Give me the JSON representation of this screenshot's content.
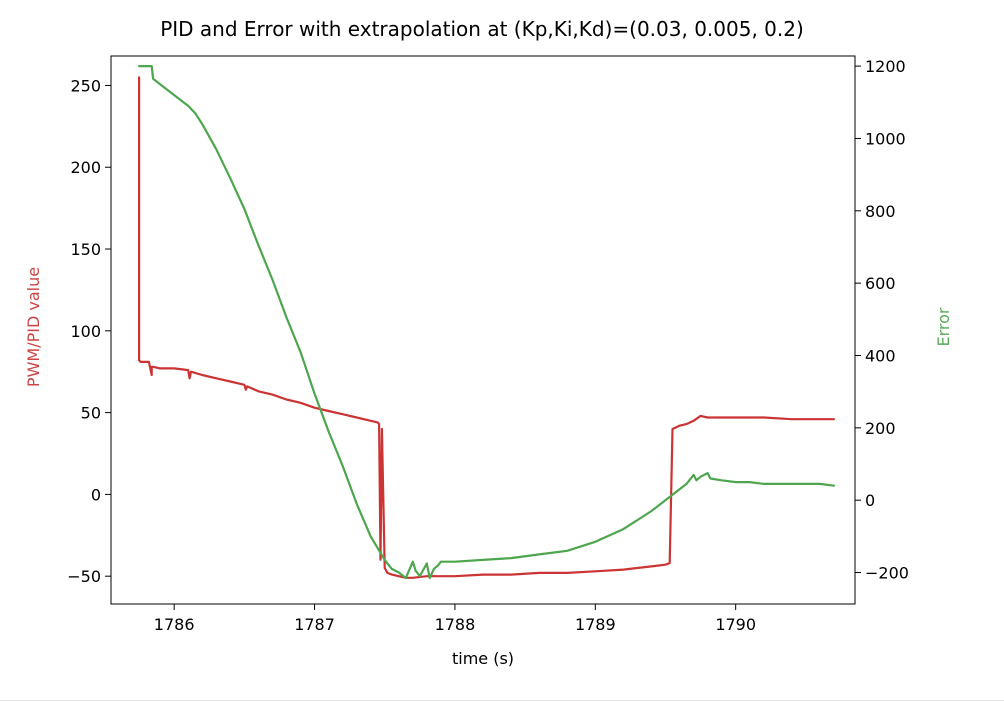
{
  "chart_data": {
    "type": "line",
    "title": "PID and Error with extrapolation at (Kp,Ki,Kd)=(0.03, 0.005, 0.2)",
    "xlabel": "time (s)",
    "ylabel_left": "PWM/PID value",
    "ylabel_right": "Error",
    "xlim": [
      1785.55,
      1790.85
    ],
    "ylim_left": [
      -67,
      268
    ],
    "ylim_right": [
      -287,
      1228
    ],
    "x_ticks": [
      1786,
      1787,
      1788,
      1789,
      1790
    ],
    "y_ticks_left": [
      -50,
      0,
      50,
      100,
      150,
      200,
      250
    ],
    "y_ticks_right": [
      -200,
      0,
      200,
      400,
      600,
      800,
      1000,
      1200
    ],
    "x_tick_labels": [
      "1786",
      "1787",
      "1788",
      "1789",
      "1790"
    ],
    "y_tick_labels_left": [
      "−50",
      "0",
      "50",
      "100",
      "150",
      "200",
      "250"
    ],
    "y_tick_labels_right": [
      "−200",
      "0",
      "200",
      "400",
      "600",
      "800",
      "1000",
      "1200"
    ],
    "grid": false,
    "colors": {
      "pwm": "#cc3333",
      "error": "#4da64d",
      "left_label": "#cc4444",
      "right_label": "#55aa55"
    },
    "series": [
      {
        "axis": "left",
        "color": "#cc3333",
        "x": [
          1785.75,
          1785.75,
          1785.76,
          1785.82,
          1785.84,
          1785.84,
          1785.85,
          1785.9,
          1786.0,
          1786.1,
          1786.11,
          1786.12,
          1786.2,
          1786.3,
          1786.4,
          1786.5,
          1786.51,
          1786.52,
          1786.6,
          1786.7,
          1786.8,
          1786.9,
          1787.0,
          1787.1,
          1787.2,
          1787.3,
          1787.4,
          1787.45,
          1787.46,
          1787.47,
          1787.48,
          1787.5,
          1787.52,
          1787.55,
          1787.6,
          1787.65,
          1787.7,
          1787.8,
          1787.9,
          1788.0,
          1788.2,
          1788.4,
          1788.6,
          1788.8,
          1789.0,
          1789.2,
          1789.4,
          1789.5,
          1789.53,
          1789.55,
          1789.6,
          1789.65,
          1789.7,
          1789.75,
          1789.8,
          1789.9,
          1790.0,
          1790.2,
          1790.4,
          1790.6,
          1790.7
        ],
        "y": [
          255,
          82,
          81,
          81,
          73,
          78,
          78,
          77,
          77,
          76,
          71,
          75,
          73,
          71,
          69,
          67,
          64,
          66,
          63,
          61,
          58,
          56,
          53,
          51,
          49,
          47,
          45,
          44,
          43,
          -40,
          40,
          -45,
          -48,
          -49,
          -50,
          -51,
          -51,
          -50,
          -50,
          -50,
          -49,
          -49,
          -48,
          -48,
          -47,
          -46,
          -44,
          -43,
          -42,
          40,
          42,
          43,
          45,
          48,
          47,
          47,
          47,
          47,
          46,
          46,
          46
        ]
      },
      {
        "axis": "right",
        "color": "#4da64d",
        "x": [
          1785.75,
          1785.8,
          1785.84,
          1785.85,
          1785.9,
          1786.0,
          1786.1,
          1786.15,
          1786.2,
          1786.3,
          1786.4,
          1786.5,
          1786.6,
          1786.7,
          1786.8,
          1786.9,
          1787.0,
          1787.1,
          1787.2,
          1787.3,
          1787.4,
          1787.5,
          1787.55,
          1787.6,
          1787.65,
          1787.7,
          1787.72,
          1787.75,
          1787.8,
          1787.82,
          1787.85,
          1787.88,
          1787.9,
          1788.0,
          1788.2,
          1788.4,
          1788.6,
          1788.8,
          1789.0,
          1789.2,
          1789.4,
          1789.55,
          1789.65,
          1789.7,
          1789.72,
          1789.75,
          1789.8,
          1789.82,
          1789.9,
          1790.0,
          1790.1,
          1790.2,
          1790.4,
          1790.6,
          1790.7
        ],
        "y": [
          1200,
          1200,
          1200,
          1165,
          1150,
          1120,
          1090,
          1070,
          1040,
          970,
          890,
          805,
          705,
          610,
          505,
          410,
          295,
          190,
          95,
          -10,
          -100,
          -165,
          -190,
          -200,
          -215,
          -170,
          -195,
          -210,
          -175,
          -215,
          -190,
          -180,
          -170,
          -170,
          -165,
          -160,
          -150,
          -140,
          -115,
          -80,
          -30,
          15,
          45,
          70,
          55,
          65,
          75,
          60,
          55,
          50,
          50,
          45,
          45,
          45,
          40
        ]
      }
    ]
  }
}
